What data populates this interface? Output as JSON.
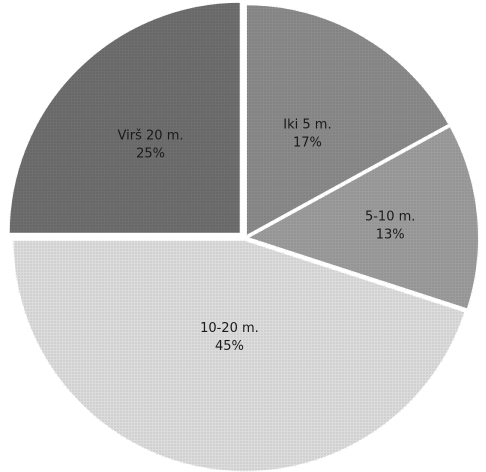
{
  "chart_data": {
    "type": "pie",
    "slices": [
      {
        "label": "Iki 5 m.",
        "value": 17,
        "pct_label": "17%",
        "color": "#8a8a8a"
      },
      {
        "label": "5-10 m.",
        "value": 13,
        "pct_label": "13%",
        "color": "#9c9c9c"
      },
      {
        "label": "10-20 m.",
        "value": 45,
        "pct_label": "45%",
        "color": "#dcdcdc"
      },
      {
        "label": "Virš 20 m.",
        "value": 25,
        "pct_label": "25%",
        "color": "#6e6e6e"
      }
    ],
    "start_angle_deg": 0,
    "direction": "clockwise",
    "legend": "none"
  }
}
